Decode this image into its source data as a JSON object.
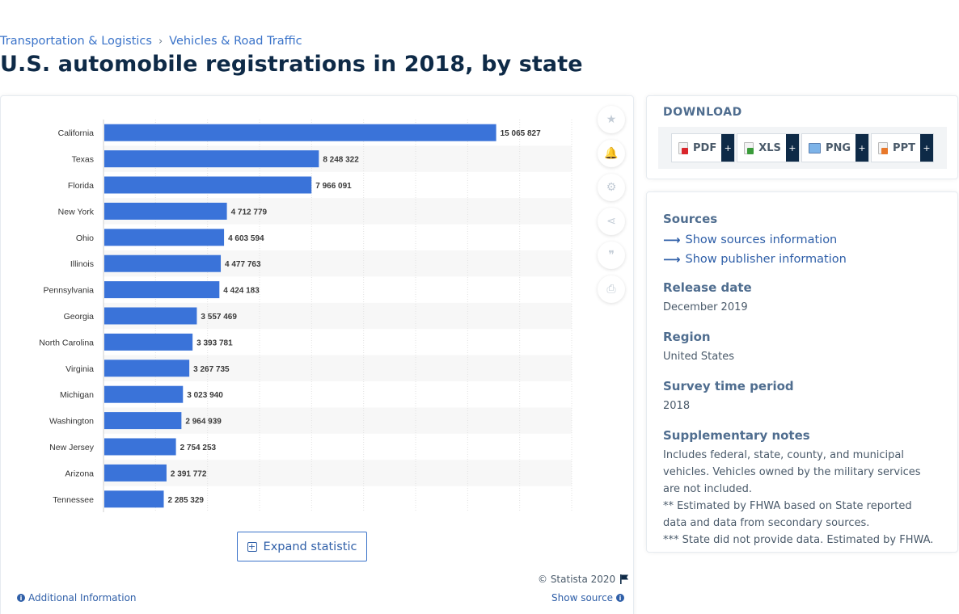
{
  "breadcrumb": {
    "first": "Transportation & Logistics",
    "separator": "›",
    "second": "Vehicles & Road Traffic"
  },
  "title": "U.S. automobile registrations in 2018, by state",
  "chart_data": {
    "type": "bar",
    "orientation": "horizontal",
    "title": "U.S. automobile registrations in 2018, by state",
    "xlabel": "",
    "ylabel": "",
    "xlim": [
      0,
      18000000
    ],
    "categories": [
      "California",
      "Texas",
      "Florida",
      "New York",
      "Ohio",
      "Illinois",
      "Pennsylvania",
      "Georgia",
      "North Carolina",
      "Virginia",
      "Michigan",
      "Washington",
      "New Jersey",
      "Arizona",
      "Tennessee"
    ],
    "values": [
      15065827,
      8248322,
      7966091,
      4712779,
      4603594,
      4477763,
      4424183,
      3557469,
      3393781,
      3267735,
      3023940,
      2964939,
      2754253,
      2391772,
      2285329
    ],
    "value_labels": [
      "15 065 827",
      "8 248 322",
      "7 966 091",
      "4 712 779",
      "4 603 594",
      "4 477 763",
      "4 424 183",
      "3 557 469",
      "3 393 781",
      "3 267 735",
      "3 023 940",
      "2 964 939",
      "2 754 253",
      "2 391 772",
      "2 285 329"
    ],
    "bar_color": "#3a73d9"
  },
  "chart_tools": [
    {
      "name": "favorite",
      "icon": "star-icon",
      "glyph": "★"
    },
    {
      "name": "notify",
      "icon": "bell-icon",
      "glyph": "🔔"
    },
    {
      "name": "settings",
      "icon": "gear-icon",
      "glyph": "⚙"
    },
    {
      "name": "share",
      "icon": "share-icon",
      "glyph": "⋖"
    },
    {
      "name": "cite",
      "icon": "quote-icon",
      "glyph": "❞"
    },
    {
      "name": "print",
      "icon": "print-icon",
      "glyph": "⎙"
    }
  ],
  "expand_label": "Expand statistic",
  "copyright": "© Statista 2020",
  "additional_info": "Additional Information",
  "show_source": "Show source",
  "download": {
    "title": "DOWNLOAD",
    "formats": [
      {
        "label": "PDF",
        "plus": "+"
      },
      {
        "label": "XLS",
        "plus": "+"
      },
      {
        "label": "PNG",
        "plus": "+"
      },
      {
        "label": "PPT",
        "plus": "+"
      }
    ]
  },
  "info": {
    "sources_label": "Sources",
    "show_sources": "Show sources information",
    "show_publisher": "Show publisher information",
    "release_label": "Release date",
    "release_value": "December 2019",
    "region_label": "Region",
    "region_value": "United States",
    "survey_label": "Survey time period",
    "survey_value": "2018",
    "notes_label": "Supplementary notes",
    "notes": [
      "Includes federal, state, county, and municipal vehicles. Vehicles owned by the military services are not included.",
      "** Estimated by FHWA based on State reported data and data from secondary sources.",
      "*** State did not provide data. Estimated by FHWA."
    ]
  },
  "colors": {
    "accent": "#2f5fa8",
    "bar": "#3a73d9",
    "title": "#0e2a47"
  }
}
